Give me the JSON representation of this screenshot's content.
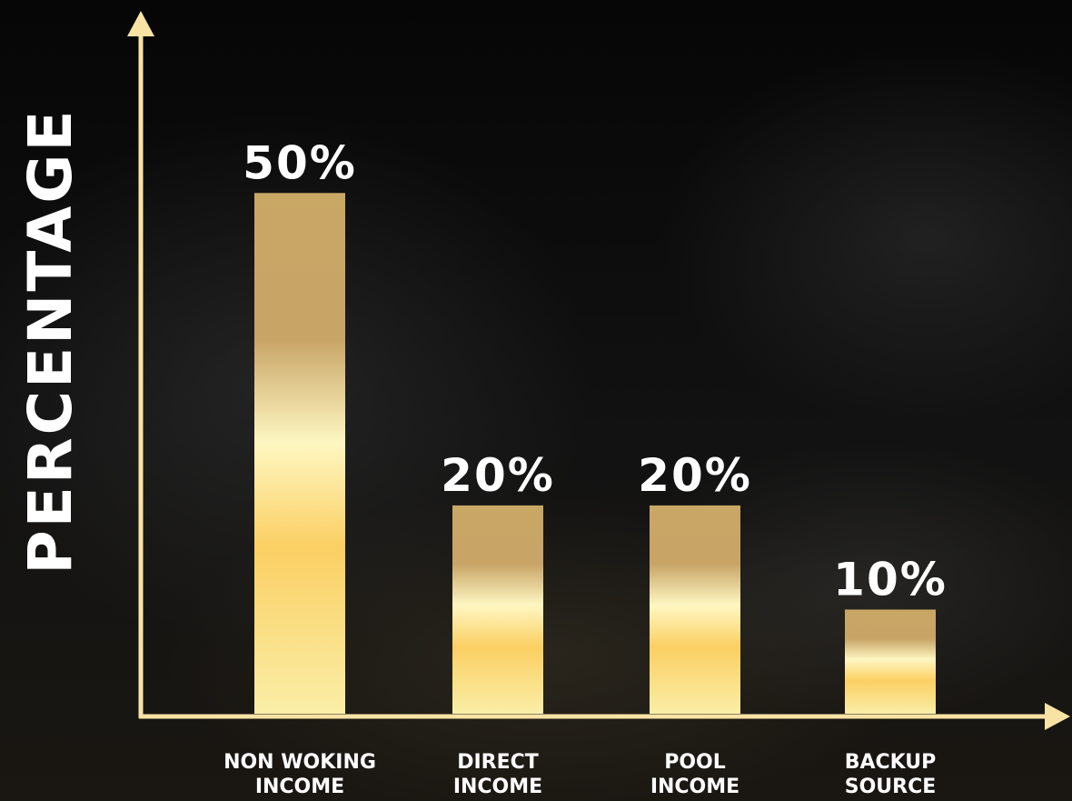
{
  "chart_data": {
    "type": "bar",
    "ylabel": "PERCENTAGE",
    "categories": [
      [
        "NON WOKING",
        "INCOME"
      ],
      [
        "DIRECT",
        "INCOME"
      ],
      [
        "POOL",
        "INCOME"
      ],
      [
        "BACKUP",
        "SOURCE"
      ]
    ],
    "values": [
      50,
      20,
      20,
      10
    ],
    "value_labels": [
      "50%",
      "20%",
      "20%",
      "10%"
    ],
    "ylim": [
      0,
      55
    ],
    "grid": false,
    "colors": {
      "axis": "#f8e3a4",
      "bar_gradient": [
        "#c9a765",
        "#c8a466",
        "#fef7c2",
        "#fbcf63",
        "#faeea7"
      ],
      "text": "#ffffff"
    }
  }
}
